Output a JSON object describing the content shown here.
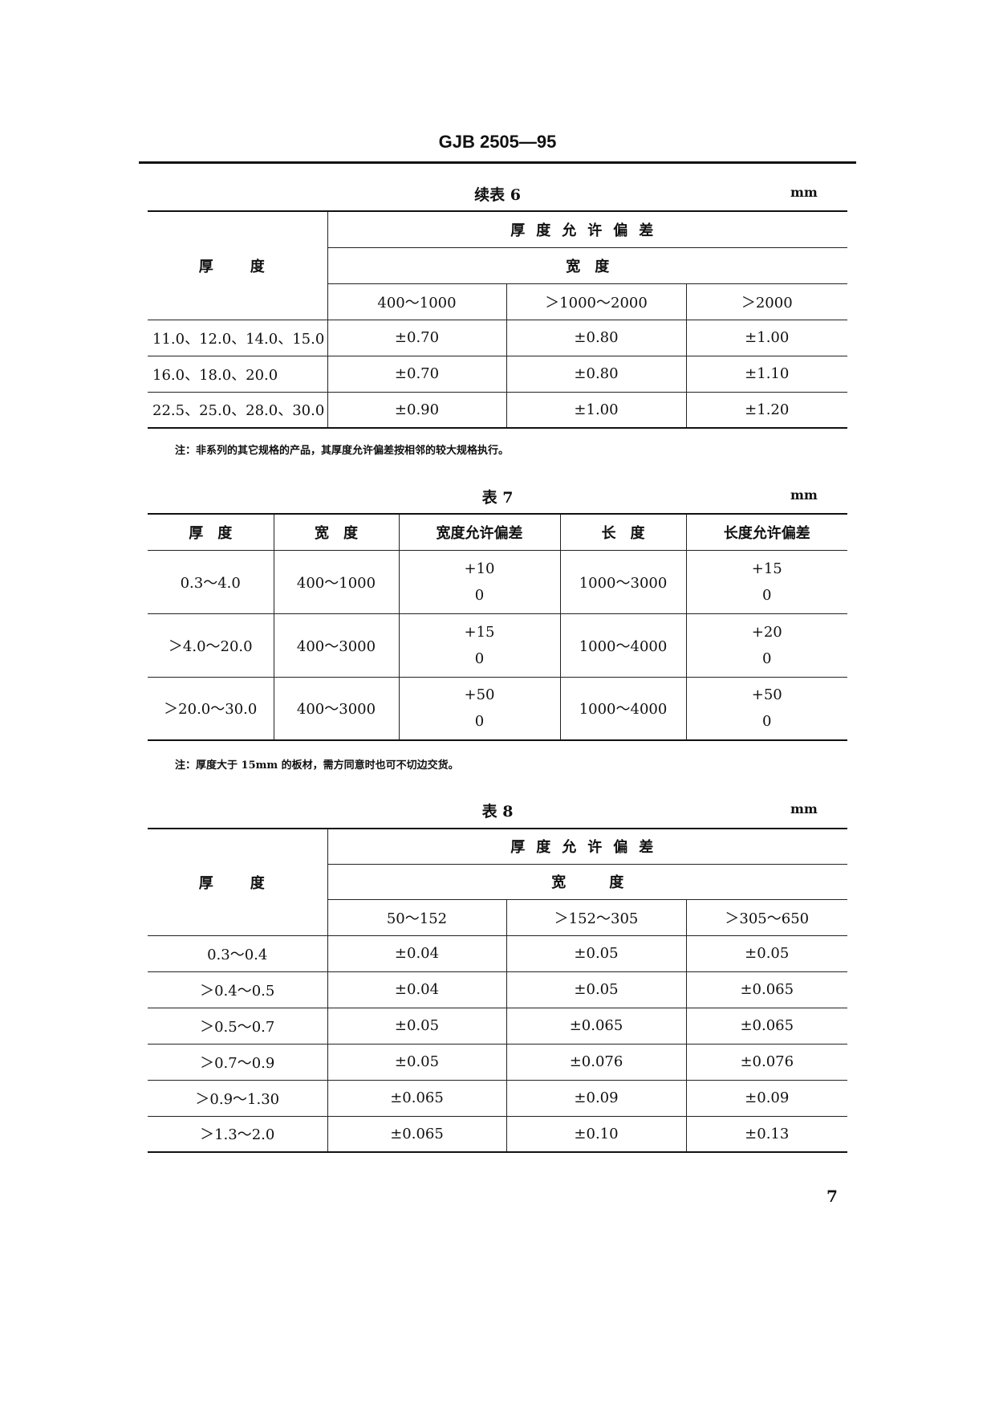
{
  "header": "GJB 2505—95",
  "table6": {
    "title": "续表 6",
    "unit": "mm",
    "col_thickness": "厚　度",
    "group": "厚度允许偏差",
    "subgroup": "宽　度",
    "widths": [
      "400～1000",
      "＞1000～2000",
      "＞2000"
    ],
    "rows": [
      {
        "t": "11.0、12.0、14.0、15.0",
        "v": [
          "±0.70",
          "±0.80",
          "±1.00"
        ]
      },
      {
        "t": "16.0、18.0、20.0",
        "v": [
          "±0.70",
          "±0.80",
          "±1.10"
        ]
      },
      {
        "t": "22.5、25.0、28.0、30.0",
        "v": [
          "±0.90",
          "±1.00",
          "±1.20"
        ]
      }
    ],
    "note": "注：非系列的其它规格的产品，其厚度允许偏差按相邻的较大规格执行。"
  },
  "table7": {
    "title": "表 7",
    "unit": "mm",
    "headers": [
      "厚　度",
      "宽　度",
      "宽度允许偏差",
      "长　度",
      "长度允许偏差"
    ],
    "rows": [
      {
        "t": "0.3～4.0",
        "w": "400～1000",
        "wt": [
          "+10",
          "0"
        ],
        "l": "1000～3000",
        "lt": [
          "+15",
          "0"
        ]
      },
      {
        "t": "＞4.0～20.0",
        "w": "400～3000",
        "wt": [
          "+15",
          "0"
        ],
        "l": "1000～4000",
        "lt": [
          "+20",
          "0"
        ]
      },
      {
        "t": "＞20.0～30.0",
        "w": "400～3000",
        "wt": [
          "+50",
          "0"
        ],
        "l": "1000～4000",
        "lt": [
          "+50",
          "0"
        ]
      }
    ],
    "note": "注：厚度大于 15mm 的板材，需方同意时也可不切边交货。"
  },
  "table8": {
    "title": "表 8",
    "unit": "mm",
    "col_thickness": "厚　度",
    "group": "厚度允许偏差",
    "subgroup": "宽　　　度",
    "widths": [
      "50～152",
      "＞152～305",
      "＞305～650"
    ],
    "rows": [
      {
        "t": "0.3～0.4",
        "v": [
          "±0.04",
          "±0.05",
          "±0.05"
        ]
      },
      {
        "t": "＞0.4～0.5",
        "v": [
          "±0.04",
          "±0.05",
          "±0.065"
        ]
      },
      {
        "t": "＞0.5～0.7",
        "v": [
          "±0.05",
          "±0.065",
          "±0.065"
        ]
      },
      {
        "t": "＞0.7～0.9",
        "v": [
          "±0.05",
          "±0.076",
          "±0.076"
        ]
      },
      {
        "t": "＞0.9～1.30",
        "v": [
          "±0.065",
          "±0.09",
          "±0.09"
        ]
      },
      {
        "t": "＞1.3～2.0",
        "v": [
          "±0.065",
          "±0.10",
          "±0.13"
        ]
      }
    ]
  },
  "page_number": "7"
}
